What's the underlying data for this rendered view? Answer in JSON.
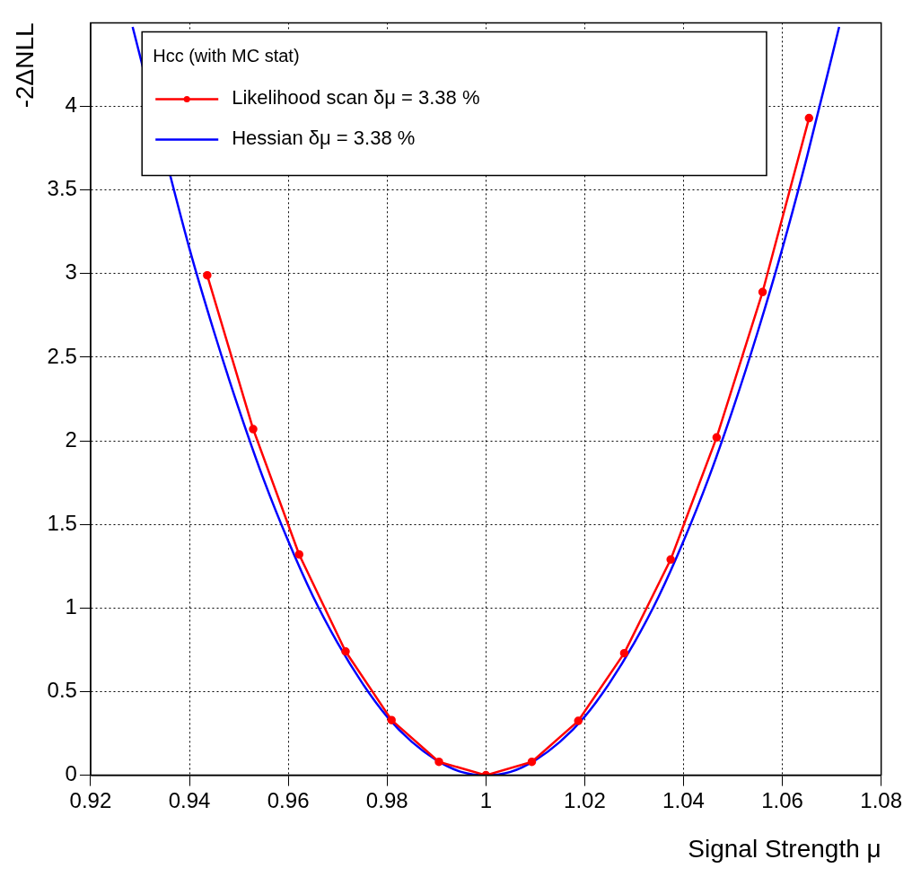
{
  "chart_data": {
    "type": "line",
    "xlabel": "Signal Strength μ",
    "ylabel": "-2ΔNLL",
    "legend_title": "Hcc (with MC stat)",
    "legend": "top",
    "grid": true,
    "xlim": [
      0.92,
      1.08
    ],
    "ylim": [
      0,
      4.5
    ],
    "xticks": [
      0.92,
      0.94,
      0.96,
      0.98,
      1,
      1.02,
      1.04,
      1.06,
      1.08
    ],
    "yticks": [
      0,
      0.5,
      1,
      1.5,
      2,
      2.5,
      3,
      3.5,
      4
    ],
    "series": [
      {
        "name": "Likelihood scan δμ = 3.38 %",
        "color": "#ff0000",
        "marker": "circle",
        "x": [
          0.9436,
          0.9529,
          0.9622,
          0.9716,
          0.9809,
          0.9905,
          1,
          1.0093,
          1.0187,
          1.028,
          1.0374,
          1.0467,
          1.056,
          1.0654
        ],
        "values": [
          2.99,
          2.07,
          1.32,
          0.74,
          0.33,
          0.08,
          0,
          0.08,
          0.325,
          0.73,
          1.29,
          2.02,
          2.89,
          3.93
        ]
      },
      {
        "name": "Hessian δμ = 3.38 %",
        "color": "#0000ff",
        "marker": "none",
        "x": [
          0.9285,
          0.94,
          0.945,
          0.95,
          0.955,
          0.96,
          0.965,
          0.97,
          0.975,
          0.98,
          0.985,
          0.99,
          0.995,
          1,
          1.005,
          1.01,
          1.015,
          1.02,
          1.025,
          1.03,
          1.035,
          1.04,
          1.045,
          1.05,
          1.055,
          1.06,
          1.065,
          1.0715
        ],
        "values": [
          4.475,
          3.15,
          2.65,
          2.19,
          1.77,
          1.4,
          1.07,
          0.79,
          0.55,
          0.35,
          0.2,
          0.09,
          0.02,
          0,
          0.02,
          0.09,
          0.2,
          0.35,
          0.55,
          0.79,
          1.07,
          1.4,
          1.77,
          2.19,
          2.65,
          3.15,
          3.7,
          4.475
        ]
      }
    ]
  }
}
